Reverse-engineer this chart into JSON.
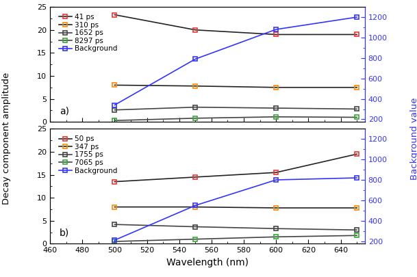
{
  "wavelengths": [
    500,
    550,
    600,
    650
  ],
  "panel_a": {
    "label": "a)",
    "lines": [
      {
        "label": "41 ps",
        "line_color": "#222222",
        "marker_color": "#ee3333",
        "values": [
          23.3,
          20.0,
          19.0,
          19.0
        ]
      },
      {
        "label": "310 ps",
        "line_color": "#222222",
        "marker_color": "#ff8800",
        "values": [
          8.0,
          7.8,
          7.5,
          7.5
        ]
      },
      {
        "label": "1652 ps",
        "line_color": "#444444",
        "marker_color": "#444444",
        "values": [
          2.6,
          3.2,
          3.0,
          2.8
        ]
      },
      {
        "label": "8297 ps",
        "line_color": "#444444",
        "marker_color": "#33aa33",
        "values": [
          0.3,
          0.8,
          1.1,
          1.0
        ]
      }
    ],
    "background": {
      "label": "Background",
      "line_color": "#3333ff",
      "marker_color": "#3333ff",
      "values": [
        340,
        790,
        1080,
        1200
      ]
    }
  },
  "panel_b": {
    "label": "b)",
    "lines": [
      {
        "label": "50 ps",
        "line_color": "#222222",
        "marker_color": "#ee3333",
        "values": [
          13.5,
          14.5,
          15.5,
          19.5
        ]
      },
      {
        "label": "347 ps",
        "line_color": "#222222",
        "marker_color": "#ff8800",
        "values": [
          8.0,
          8.0,
          7.8,
          7.8
        ]
      },
      {
        "label": "1755 ps",
        "line_color": "#444444",
        "marker_color": "#444444",
        "values": [
          4.2,
          3.7,
          3.3,
          3.0
        ]
      },
      {
        "label": "7065 ps",
        "line_color": "#444444",
        "marker_color": "#33aa33",
        "values": [
          0.5,
          1.0,
          1.5,
          1.8
        ]
      }
    ],
    "background": {
      "label": "Background",
      "line_color": "#3333ff",
      "marker_color": "#3333ff",
      "values": [
        210,
        550,
        800,
        820
      ]
    }
  },
  "ylim_left": [
    0,
    25
  ],
  "ylim_right": [
    175,
    1300
  ],
  "xlim": [
    460,
    655
  ],
  "xticks": [
    460,
    480,
    500,
    520,
    540,
    560,
    580,
    600,
    620,
    640
  ],
  "xtick_labels": [
    "460",
    "480",
    "500",
    "520",
    "540",
    "560",
    "580",
    "600",
    "620",
    "640"
  ],
  "yticks_left": [
    0,
    5,
    10,
    15,
    20,
    25
  ],
  "yticks_right": [
    200,
    400,
    600,
    800,
    1000,
    1200
  ],
  "xlabel": "Wavelength (nm)",
  "ylabel_left": "Decay component amplitude",
  "ylabel_right": "Background value",
  "line_width": 1.2,
  "marker_size": 5,
  "legend_fontsize": 7.5,
  "figsize": [
    6.09,
    4.05
  ],
  "dpi": 100
}
